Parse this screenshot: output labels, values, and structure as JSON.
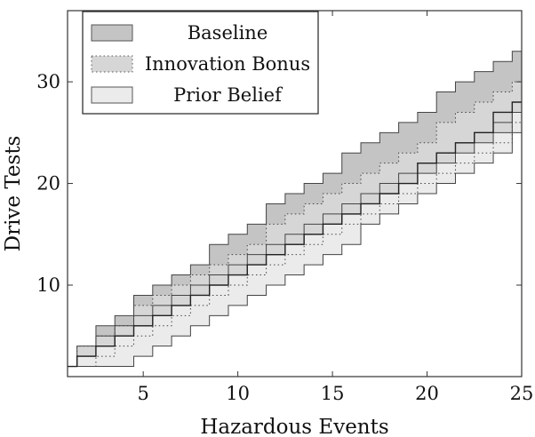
{
  "chart_data": {
    "type": "area",
    "title": "",
    "xlabel": "Hazardous Events",
    "ylabel": "Drive Tests",
    "xlim": [
      1,
      25
    ],
    "ylim": [
      1,
      37
    ],
    "x_ticks": [
      5,
      10,
      15,
      20,
      25
    ],
    "y_ticks": [
      10,
      20,
      30
    ],
    "grid": false,
    "legend_position": "top-left",
    "x": [
      1,
      2,
      3,
      4,
      5,
      6,
      7,
      8,
      9,
      10,
      11,
      12,
      13,
      14,
      15,
      16,
      17,
      18,
      19,
      20,
      21,
      22,
      23,
      24,
      25
    ],
    "series": [
      {
        "name": "Baseline",
        "color": "#c4c4c4",
        "border_style": "solid",
        "lower": [
          2,
          3,
          5,
          6,
          7,
          8,
          9,
          10,
          11,
          12,
          13,
          14,
          15,
          16,
          17,
          18,
          19,
          20,
          21,
          22,
          23,
          24,
          25,
          26,
          27
        ],
        "upper": [
          2,
          4,
          6,
          7,
          9,
          10,
          11,
          12,
          14,
          15,
          16,
          18,
          19,
          20,
          21,
          23,
          24,
          25,
          26,
          27,
          29,
          30,
          31,
          32,
          33
        ]
      },
      {
        "name": "Innovation Bonus",
        "color": "#d6d6d6",
        "border_style": "dotted",
        "lower": [
          2,
          2,
          3,
          4,
          5,
          6,
          7,
          8,
          9,
          10,
          11,
          12,
          13,
          14,
          15,
          16,
          17,
          18,
          19,
          20,
          21,
          22,
          23,
          24,
          26
        ],
        "upper": [
          2,
          4,
          5,
          6,
          8,
          9,
          10,
          11,
          12,
          13,
          14,
          16,
          17,
          18,
          19,
          20,
          21,
          22,
          23,
          24,
          26,
          27,
          28,
          29,
          30
        ]
      },
      {
        "name": "Prior Belief",
        "color": "#ebebeb",
        "border_style": "solid",
        "lower": [
          2,
          2,
          2,
          2,
          3,
          4,
          5,
          6,
          7,
          8,
          9,
          10,
          11,
          12,
          13,
          14,
          16,
          17,
          18,
          19,
          20,
          21,
          22,
          23,
          25
        ],
        "upper": [
          2,
          3,
          4,
          5,
          6,
          7,
          8,
          9,
          10,
          11,
          12,
          13,
          14,
          15,
          16,
          17,
          18,
          19,
          20,
          21,
          22,
          23,
          24,
          25,
          27
        ]
      }
    ],
    "median": {
      "name": "",
      "color": "#222222",
      "values": [
        2,
        3,
        4,
        5,
        6,
        7,
        8,
        9,
        10,
        11,
        12,
        13,
        14,
        15,
        16,
        17,
        18,
        19,
        20,
        22,
        23,
        24,
        25,
        27,
        28
      ]
    }
  }
}
